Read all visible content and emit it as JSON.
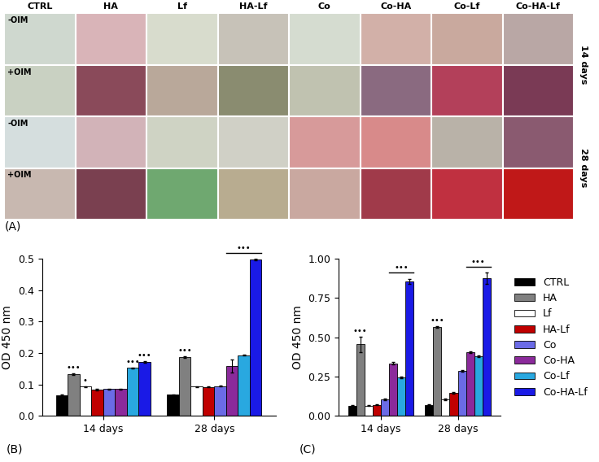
{
  "panel_a": {
    "label": "(A)",
    "columns": [
      "CTRL",
      "HA",
      "Lf",
      "HA-Lf",
      "Co",
      "Co-HA",
      "Co-Lf",
      "Co-HA-Lf"
    ],
    "row_labels": [
      "-OIM",
      "+OIM",
      "-OIM",
      "+OIM"
    ],
    "time_labels": [
      "14 days",
      "28 days"
    ]
  },
  "chart_data": [
    {
      "type": "bar",
      "panel_label": "(B)",
      "y_label": "OD 450 nm",
      "categories": [
        "14 days",
        "28 days"
      ],
      "ylim": [
        0,
        0.5
      ],
      "yticks": [
        {
          "value": 0,
          "label": "0.0"
        },
        0.1,
        0.2,
        0.3,
        0.4,
        0.5
      ],
      "series": [
        {
          "name": "CTRL",
          "color": "#000000",
          "values": [
            0.065,
            0.067
          ],
          "errors": [
            0.002,
            0.002
          ]
        },
        {
          "name": "HA",
          "color": "#808080",
          "values": [
            0.133,
            0.187
          ],
          "errors": [
            0.003,
            0.003
          ]
        },
        {
          "name": "Lf",
          "color": "#ffffff",
          "values": [
            0.093,
            0.093
          ],
          "errors": [
            0.002,
            0.002
          ]
        },
        {
          "name": "HA-Lf",
          "color": "#c00000",
          "values": [
            0.083,
            0.092
          ],
          "errors": [
            0.002,
            0.002
          ]
        },
        {
          "name": "Co",
          "color": "#6b6be6",
          "values": [
            0.085,
            0.095
          ],
          "errors": [
            0.002,
            0.002
          ]
        },
        {
          "name": "Co-HA",
          "color": "#8b2a9b",
          "values": [
            0.085,
            0.158
          ],
          "errors": [
            0.002,
            0.02
          ]
        },
        {
          "name": "Co-Lf",
          "color": "#29a8e0",
          "values": [
            0.152,
            0.193
          ],
          "errors": [
            0.002,
            0.002
          ]
        },
        {
          "name": "Co-HA-Lf",
          "color": "#1a1ae6",
          "values": [
            0.172,
            0.497
          ],
          "errors": [
            0.002,
            0.002
          ]
        }
      ],
      "annotations": [
        {
          "text": "•••",
          "category": "14 days",
          "series": "HA"
        },
        {
          "text": "•",
          "category": "14 days",
          "series": "Lf"
        },
        {
          "text": "•••",
          "category": "14 days",
          "series": "Co-Lf"
        },
        {
          "text": "•••",
          "category": "14 days",
          "series": "Co-HA-Lf"
        },
        {
          "text": "•••",
          "category": "28 days",
          "series": "HA"
        },
        {
          "text": "•••",
          "category": "28 days",
          "from": "Co-HA",
          "to": "Co-HA-Lf"
        }
      ]
    },
    {
      "type": "bar",
      "panel_label": "(C)",
      "y_label": "OD 450 nm",
      "categories": [
        "14 days",
        "28 days"
      ],
      "ylim": [
        0,
        1.0
      ],
      "yticks": [
        {
          "value": 0,
          "label": "0.00"
        },
        {
          "value": 0.25,
          "label": "0.25"
        },
        {
          "value": 0.5,
          "label": "0.50"
        },
        {
          "value": 0.75,
          "label": "0.75"
        },
        {
          "value": 1.0,
          "label": "1.00"
        }
      ],
      "legend": "right",
      "series": [
        {
          "name": "CTRL",
          "color": "#000000",
          "values": [
            0.065,
            0.07
          ],
          "errors": [
            0.003,
            0.003
          ]
        },
        {
          "name": "HA",
          "color": "#808080",
          "values": [
            0.455,
            0.565
          ],
          "errors": [
            0.05,
            0.005
          ]
        },
        {
          "name": "Lf",
          "color": "#ffffff",
          "values": [
            0.065,
            0.105
          ],
          "errors": [
            0.003,
            0.003
          ]
        },
        {
          "name": "HA-Lf",
          "color": "#c00000",
          "values": [
            0.07,
            0.145
          ],
          "errors": [
            0.003,
            0.005
          ]
        },
        {
          "name": "Co",
          "color": "#6b6be6",
          "values": [
            0.105,
            0.285
          ],
          "errors": [
            0.003,
            0.005
          ]
        },
        {
          "name": "Co-HA",
          "color": "#8b2a9b",
          "values": [
            0.335,
            0.405
          ],
          "errors": [
            0.01,
            0.005
          ]
        },
        {
          "name": "Co-Lf",
          "color": "#29a8e0",
          "values": [
            0.245,
            0.38
          ],
          "errors": [
            0.005,
            0.005
          ]
        },
        {
          "name": "Co-HA-Lf",
          "color": "#1a1ae6",
          "values": [
            0.855,
            0.875
          ],
          "errors": [
            0.015,
            0.035
          ]
        }
      ],
      "annotations": [
        {
          "text": "•••",
          "category": "14 days",
          "series": "HA"
        },
        {
          "text": "•••",
          "category": "14 days",
          "from": "Co-HA",
          "to": "Co-HA-Lf"
        },
        {
          "text": "•••",
          "category": "28 days",
          "series": "HA"
        },
        {
          "text": "•••",
          "category": "28 days",
          "from": "Co-HA",
          "to": "Co-HA-Lf"
        }
      ]
    }
  ]
}
